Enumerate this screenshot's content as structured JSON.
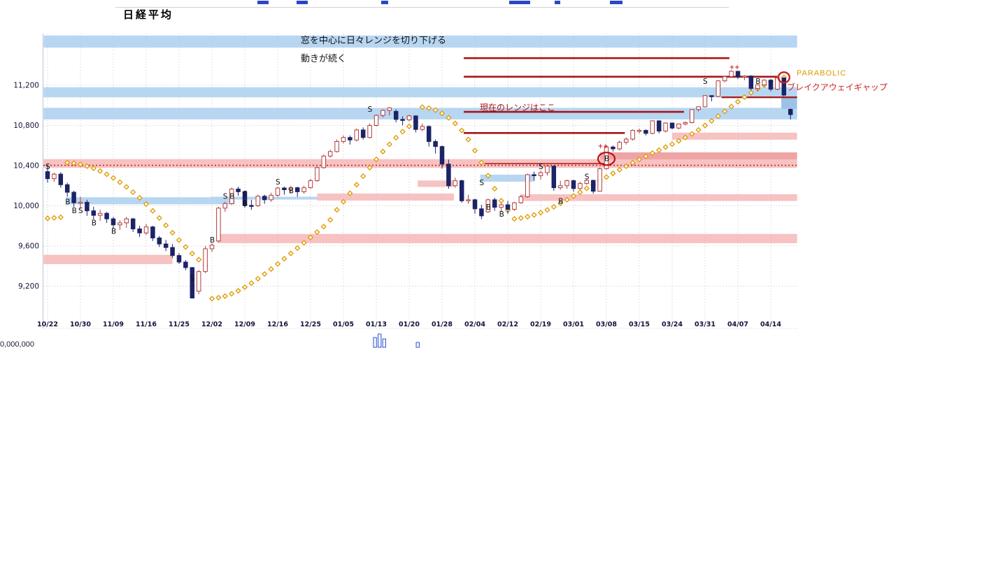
{
  "title": "日経平均",
  "volume_axis_label": "0,000,000",
  "annotations": {
    "note_line1": "窓を中心に日々レンジを切り下げる",
    "note_line2": "動きが続く",
    "current_range": "現在のレンジはここ",
    "parabolic": "PARABOLIC",
    "breakaway_gap": "ブレイクアウェイギャップ"
  },
  "chart_data": {
    "type": "candlestick",
    "title": "日経平均",
    "x_labels": [
      "10/22",
      "10/30",
      "11/09",
      "11/16",
      "11/25",
      "12/02",
      "12/09",
      "12/16",
      "12/25",
      "01/05",
      "01/13",
      "01/20",
      "01/28",
      "02/04",
      "02/12",
      "02/19",
      "03/01",
      "03/08",
      "03/15",
      "03/24",
      "03/31",
      "04/07",
      "04/14"
    ],
    "label_step": 5,
    "y_ticks": [
      {
        "v": 11200,
        "label": "11,200"
      },
      {
        "v": 10800,
        "label": "10,800"
      },
      {
        "v": 10400,
        "label": "10,400"
      },
      {
        "v": 10000,
        "label": "10,000"
      },
      {
        "v": 9600,
        "label": "9,600"
      },
      {
        "v": 9200,
        "label": "9,200"
      }
    ],
    "ylim": [
      9050,
      11715
    ],
    "colors": {
      "up_candle_fill": "#ffffff",
      "up_candle_stroke": "#b23b3b",
      "down_candle": "#1c2366",
      "sar_stroke": "#dd9900",
      "sar_fill": "#fffdf0",
      "band_blue": "#b7d6f2",
      "band_blue_strong": "#9cc2e8",
      "band_pink": "#f7c2c2",
      "band_pink_strong": "#efa4a4",
      "resistance_line": "#aa1414",
      "dotted_line": "#cc2222",
      "grid": "#c9c9c9",
      "axis": "#b9c6da",
      "label": "#14143c",
      "signal": "#101010",
      "signal_red": "#cc2222",
      "circle_red": "#bb1111",
      "volume_stroke": "#3355cc",
      "volume_fill": "#f0f5ff"
    },
    "candles": [
      [
        10340,
        10395,
        10230,
        10270
      ],
      [
        10270,
        10330,
        10240,
        10315
      ],
      [
        10315,
        10335,
        10180,
        10210
      ],
      [
        10210,
        10230,
        10090,
        10135
      ],
      [
        10135,
        10150,
        9990,
        10030
      ],
      [
        10030,
        10090,
        9970,
        10035
      ],
      [
        10035,
        10060,
        9900,
        9950
      ],
      [
        9950,
        9990,
        9865,
        9905
      ],
      [
        9905,
        9960,
        9850,
        9925
      ],
      [
        9925,
        9940,
        9830,
        9870
      ],
      [
        9870,
        9890,
        9770,
        9810
      ],
      [
        9810,
        9855,
        9760,
        9830
      ],
      [
        9830,
        9890,
        9780,
        9870
      ],
      [
        9870,
        9880,
        9740,
        9770
      ],
      [
        9770,
        9800,
        9690,
        9730
      ],
      [
        9730,
        9820,
        9710,
        9790
      ],
      [
        9790,
        9800,
        9650,
        9680
      ],
      [
        9680,
        9700,
        9590,
        9620
      ],
      [
        9620,
        9660,
        9550,
        9585
      ],
      [
        9585,
        9620,
        9480,
        9505
      ],
      [
        9505,
        9530,
        9420,
        9440
      ],
      [
        9440,
        9460,
        9360,
        9385
      ],
      [
        9385,
        9390,
        9076,
        9082
      ],
      [
        9150,
        9360,
        9120,
        9345
      ],
      [
        9345,
        9600,
        9330,
        9572
      ],
      [
        9572,
        9630,
        9540,
        9608
      ],
      [
        9650,
        9990,
        9640,
        9977
      ],
      [
        9977,
        10040,
        9940,
        10022
      ],
      [
        10022,
        10180,
        10010,
        10167
      ],
      [
        10167,
        10190,
        10100,
        10140
      ],
      [
        10140,
        10150,
        9980,
        10004
      ],
      [
        10004,
        10060,
        9960,
        10000
      ],
      [
        10000,
        10110,
        9990,
        10095
      ],
      [
        10095,
        10110,
        10020,
        10060
      ],
      [
        10060,
        10130,
        10040,
        10105
      ],
      [
        10105,
        10190,
        10090,
        10177
      ],
      [
        10177,
        10190,
        10110,
        10160
      ],
      [
        10160,
        10200,
        10130,
        10180
      ],
      [
        10180,
        10190,
        10090,
        10140
      ],
      [
        10140,
        10200,
        10120,
        10180
      ],
      [
        10180,
        10270,
        10170,
        10250
      ],
      [
        10250,
        10390,
        10240,
        10380
      ],
      [
        10380,
        10510,
        10370,
        10495
      ],
      [
        10495,
        10560,
        10480,
        10540
      ],
      [
        10540,
        10660,
        10530,
        10640
      ],
      [
        10640,
        10700,
        10620,
        10680
      ],
      [
        10680,
        10700,
        10610,
        10655
      ],
      [
        10655,
        10770,
        10640,
        10755
      ],
      [
        10755,
        10780,
        10660,
        10680
      ],
      [
        10680,
        10820,
        10670,
        10800
      ],
      [
        10800,
        10910,
        10790,
        10900
      ],
      [
        10900,
        10960,
        10880,
        10950
      ],
      [
        10950,
        10982,
        10900,
        10975
      ],
      [
        10940,
        10960,
        10830,
        10860
      ],
      [
        10860,
        10890,
        10800,
        10855
      ],
      [
        10855,
        10905,
        10840,
        10895
      ],
      [
        10895,
        10900,
        10730,
        10760
      ],
      [
        10760,
        10820,
        10740,
        10790
      ],
      [
        10790,
        10800,
        10590,
        10640
      ],
      [
        10640,
        10660,
        10520,
        10590
      ],
      [
        10590,
        10600,
        10370,
        10415
      ],
      [
        10415,
        10460,
        10170,
        10200
      ],
      [
        10200,
        10280,
        10180,
        10250
      ],
      [
        10250,
        10260,
        10030,
        10050
      ],
      [
        10050,
        10110,
        10020,
        10060
      ],
      [
        10060,
        10070,
        9920,
        9970
      ],
      [
        9970,
        10010,
        9867,
        9900
      ],
      [
        9940,
        10070,
        9930,
        10060
      ],
      [
        10060,
        10080,
        9950,
        9985
      ],
      [
        9985,
        10030,
        9940,
        10010
      ],
      [
        10010,
        10050,
        9920,
        9965
      ],
      [
        9965,
        10040,
        9950,
        10030
      ],
      [
        10030,
        10110,
        10020,
        10090
      ],
      [
        10090,
        10320,
        10080,
        10310
      ],
      [
        10310,
        10340,
        10250,
        10300
      ],
      [
        10300,
        10350,
        10260,
        10330
      ],
      [
        10330,
        10400,
        10300,
        10395
      ],
      [
        10395,
        10400,
        10150,
        10180
      ],
      [
        10180,
        10250,
        10160,
        10200
      ],
      [
        10200,
        10260,
        10170,
        10250
      ],
      [
        10250,
        10260,
        10140,
        10172
      ],
      [
        10172,
        10240,
        10160,
        10222
      ],
      [
        10222,
        10270,
        10210,
        10253
      ],
      [
        10253,
        10260,
        10120,
        10145
      ],
      [
        10145,
        10380,
        10140,
        10369
      ],
      [
        10369,
        10600,
        10360,
        10585
      ],
      [
        10585,
        10600,
        10540,
        10567
      ],
      [
        10567,
        10650,
        10550,
        10632
      ],
      [
        10632,
        10680,
        10610,
        10664
      ],
      [
        10664,
        10760,
        10650,
        10751
      ],
      [
        10751,
        10770,
        10720,
        10751
      ],
      [
        10751,
        10760,
        10700,
        10721
      ],
      [
        10721,
        10850,
        10710,
        10846
      ],
      [
        10846,
        10850,
        10720,
        10744
      ],
      [
        10744,
        10830,
        10730,
        10824
      ],
      [
        10824,
        10830,
        10760,
        10774
      ],
      [
        10774,
        10820,
        10760,
        10815
      ],
      [
        10815,
        10840,
        10800,
        10828
      ],
      [
        10828,
        10960,
        10820,
        10958
      ],
      [
        10958,
        10990,
        10940,
        10986
      ],
      [
        10986,
        11100,
        10980,
        11097
      ],
      [
        11097,
        11100,
        11040,
        11089
      ],
      [
        11089,
        11250,
        11080,
        11244
      ],
      [
        11244,
        11290,
        11230,
        11286
      ],
      [
        11286,
        11350,
        11280,
        11339
      ],
      [
        11339,
        11340,
        11260,
        11282
      ],
      [
        11282,
        11300,
        11250,
        11292
      ],
      [
        11292,
        11300,
        11150,
        11168
      ],
      [
        11168,
        11210,
        11140,
        11204
      ],
      [
        11204,
        11260,
        11190,
        11251
      ],
      [
        11251,
        11260,
        11140,
        11161
      ],
      [
        11161,
        11280,
        11150,
        11273
      ],
      [
        11273,
        11280,
        11090,
        11102
      ],
      [
        10960,
        10970,
        10860,
        10908
      ]
    ],
    "parabolic_sar": [
      9875,
      9880,
      9886,
      10430,
      10424,
      10412,
      10395,
      10373,
      10346,
      10314,
      10277,
      10235,
      10188,
      10136,
      10079,
      10017,
      9950,
      9878,
      9805,
      9732,
      9659,
      9590,
      9525,
      9464,
      9407,
      9076,
      9085,
      9101,
      9124,
      9154,
      9190,
      9230,
      9274,
      9321,
      9370,
      9421,
      9473,
      9526,
      9579,
      9632,
      9685,
      9738,
      9793,
      9860,
      9960,
      10040,
      10125,
      10210,
      10295,
      10380,
      10462,
      10540,
      10612,
      10678,
      10738,
      10790,
      10835,
      10982,
      10972,
      10952,
      10920,
      10876,
      10820,
      10750,
      10660,
      10550,
      10430,
      10300,
      10170,
      10050,
      9955,
      9870,
      9878,
      9891,
      9909,
      9932,
      9959,
      9990,
      10024,
      10060,
      10097,
      10135,
      10173,
      10211,
      10249,
      10286,
      10323,
      10359,
      10394,
      10428,
      10461,
      10493,
      10524,
      10554,
      10584,
      10614,
      10646,
      10680,
      10716,
      10756,
      10800,
      10845,
      10892,
      10940,
      10988,
      11036,
      11082,
      11126,
      11166,
      11202,
      11234,
      11260,
      11278
    ],
    "signals": [
      {
        "i": 0,
        "p": 10390,
        "t": "S"
      },
      {
        "i": 3,
        "p": 10040,
        "t": "B"
      },
      {
        "i": 4,
        "p": 9950,
        "t": "B"
      },
      {
        "i": 5,
        "p": 9950,
        "t": "S"
      },
      {
        "i": 7,
        "p": 9830,
        "t": "B"
      },
      {
        "i": 10,
        "p": 9745,
        "t": "B"
      },
      {
        "i": 22,
        "p": 9280,
        "t": "S"
      },
      {
        "i": 25,
        "p": 9660,
        "t": "B"
      },
      {
        "i": 27,
        "p": 10095,
        "t": "S"
      },
      {
        "i": 28,
        "p": 10095,
        "t": "B"
      },
      {
        "i": 30,
        "p": 10120,
        "t": "S"
      },
      {
        "i": 30,
        "p": 10020,
        "t": "B"
      },
      {
        "i": 35,
        "p": 10235,
        "t": "S"
      },
      {
        "i": 37,
        "p": 10150,
        "t": "B"
      },
      {
        "i": 49,
        "p": 10960,
        "t": "S"
      },
      {
        "i": 66,
        "p": 10230,
        "t": "S"
      },
      {
        "i": 67,
        "p": 9985,
        "t": "B"
      },
      {
        "i": 69,
        "p": 9915,
        "t": "B"
      },
      {
        "i": 75,
        "p": 10390,
        "t": "S"
      },
      {
        "i": 78,
        "p": 10045,
        "t": "B"
      },
      {
        "i": 82,
        "p": 10290,
        "t": "S"
      },
      {
        "i": 84,
        "p": 10600,
        "t": "++",
        "red": true
      },
      {
        "i": 85,
        "p": 10468,
        "t": "B"
      },
      {
        "i": 100,
        "p": 11240,
        "t": "S"
      },
      {
        "i": 104,
        "p": 11385,
        "t": "++",
        "red": true
      },
      {
        "i": 108,
        "p": 11240,
        "t": "B"
      }
    ],
    "bands": [
      {
        "color": "blue",
        "p1": 11695,
        "p2": 11575,
        "i1": -0.6,
        "i2": 114
      },
      {
        "color": "blue",
        "p1": 11180,
        "p2": 11080,
        "i1": -0.6,
        "i2": 114
      },
      {
        "color": "blue",
        "p1": 10975,
        "p2": 10860,
        "i1": -0.6,
        "i2": 114
      },
      {
        "color": "pink",
        "p1": 10465,
        "p2": 10378,
        "i1": -0.6,
        "i2": 114
      },
      {
        "color": "pink",
        "p1": 9512,
        "p2": 9420,
        "i1": -0.6,
        "i2": 19
      },
      {
        "color": "blue",
        "p1": 10085,
        "p2": 10015,
        "i1": 2.8,
        "i2": 28.5
      },
      {
        "color": "pink",
        "p1": 9720,
        "p2": 9628,
        "i1": 25.8,
        "i2": 114
      },
      {
        "color": "blue",
        "p1": 10090,
        "p2": 10062,
        "i1": 24.8,
        "i2": 61.5
      },
      {
        "color": "pink",
        "p1": 10122,
        "p2": 10052,
        "i1": 41,
        "i2": 61.8
      },
      {
        "color": "pink",
        "p1": 10252,
        "p2": 10188,
        "i1": 56.3,
        "i2": 61.8
      },
      {
        "color": "blue",
        "p1": 10310,
        "p2": 10240,
        "i1": 65.8,
        "i2": 74
      },
      {
        "color": "pink",
        "p1": 10115,
        "p2": 10048,
        "i1": 72,
        "i2": 114
      },
      {
        "color": "pink_strong",
        "p1": 10532,
        "p2": 10462,
        "i1": 84,
        "i2": 114
      },
      {
        "color": "pink",
        "p1": 10728,
        "p2": 10658,
        "i1": 95,
        "i2": 114
      },
      {
        "color": "blue_strong",
        "p1": 11090,
        "p2": 10965,
        "i1": 111.6,
        "i2": 114
      }
    ],
    "resistance_lines": [
      {
        "p": 11470,
        "i1": 63.3,
        "i2": 103.7,
        "w": 2.6
      },
      {
        "p": 11285,
        "i1": 63.3,
        "i2": 111.2,
        "w": 2.6
      },
      {
        "p": 10935,
        "i1": 63.3,
        "i2": 96.8,
        "w": 2.6
      },
      {
        "p": 10725,
        "i1": 63.3,
        "i2": 87.8,
        "w": 2.6
      },
      {
        "p": 11080,
        "i1": 102.5,
        "i2": 114,
        "w": 2.2
      },
      {
        "p": 10420,
        "i1": 66.5,
        "i2": 85.3,
        "w": 1.6
      }
    ],
    "dotted_support_line": 10403,
    "buy_circle": {
      "index": 85,
      "price": 10468
    },
    "sar_circle": {
      "index": 112,
      "price": 11278
    },
    "volume_bars": [
      {
        "i": 49.8,
        "h": 14
      },
      {
        "i": 50.5,
        "h": 19
      },
      {
        "i": 51.2,
        "h": 12
      },
      {
        "i": 56.3,
        "h": 7
      }
    ]
  }
}
